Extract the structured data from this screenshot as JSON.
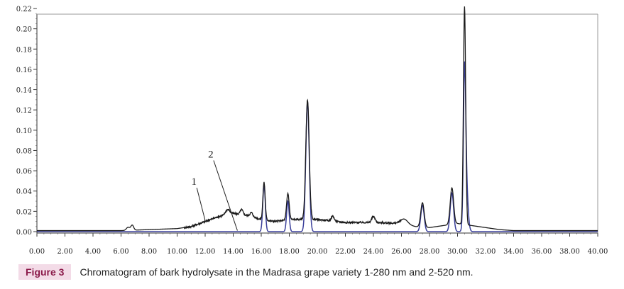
{
  "chart_data": {
    "type": "line",
    "xlim": [
      0,
      40
    ],
    "ylim": [
      0,
      0.22
    ],
    "grid": false,
    "x_ticks": [
      "0.00",
      "2.00",
      "4.00",
      "6.00",
      "8.00",
      "10.00",
      "12.00",
      "14.00",
      "16.00",
      "18.00",
      "20.00",
      "22.00",
      "24.00",
      "26.00",
      "28.00",
      "30.00",
      "32.00",
      "34.00",
      "36.00",
      "38.00",
      "40.00"
    ],
    "y_ticks": [
      "0.00",
      "0.02",
      "0.04",
      "0.06",
      "0.08",
      "0.10",
      "0.12",
      "0.14",
      "0.16",
      "0.18",
      "0.20",
      "0.22"
    ],
    "series": [
      {
        "name": "1",
        "color": "#1a1a1a",
        "baseline": [
          [
            0,
            0.001
          ],
          [
            6,
            0.001
          ],
          [
            10,
            0.003
          ],
          [
            11,
            0.005
          ],
          [
            12,
            0.01
          ],
          [
            13,
            0.015
          ],
          [
            14,
            0.018
          ],
          [
            15,
            0.016
          ],
          [
            16,
            0.012
          ],
          [
            17,
            0.01
          ],
          [
            18,
            0.012
          ],
          [
            19,
            0.012
          ],
          [
            20,
            0.012
          ],
          [
            22,
            0.009
          ],
          [
            24,
            0.009
          ],
          [
            26,
            0.008
          ],
          [
            27,
            0.005
          ],
          [
            28,
            0.004
          ],
          [
            29,
            0.006
          ],
          [
            30,
            0.008
          ],
          [
            31,
            0.006
          ],
          [
            32,
            0.004
          ],
          [
            33,
            0.002
          ],
          [
            34,
            0.001
          ],
          [
            40,
            0.001
          ]
        ],
        "peaks": [
          [
            6.5,
            0.003,
            0.12
          ],
          [
            6.8,
            0.005,
            0.1
          ],
          [
            13.6,
            0.005,
            0.15
          ],
          [
            14.6,
            0.005,
            0.1
          ],
          [
            15.3,
            0.004,
            0.1
          ],
          [
            16.2,
            0.037,
            0.08
          ],
          [
            17.9,
            0.026,
            0.09
          ],
          [
            19.3,
            0.118,
            0.12
          ],
          [
            21.1,
            0.005,
            0.1
          ],
          [
            24.0,
            0.006,
            0.12
          ],
          [
            26.2,
            0.005,
            0.25
          ],
          [
            27.5,
            0.024,
            0.12
          ],
          [
            29.6,
            0.036,
            0.12
          ],
          [
            30.5,
            0.215,
            0.08
          ]
        ]
      },
      {
        "name": "2",
        "color": "#3a3f9a",
        "baseline": [
          [
            0,
            0.0
          ],
          [
            40,
            0.0
          ]
        ],
        "peaks": [
          [
            16.2,
            0.046,
            0.09
          ],
          [
            17.9,
            0.03,
            0.09
          ],
          [
            19.3,
            0.128,
            0.12
          ],
          [
            27.5,
            0.026,
            0.12
          ],
          [
            29.6,
            0.038,
            0.12
          ],
          [
            30.5,
            0.13,
            0.08
          ],
          [
            30.6,
            0.05,
            0.13
          ]
        ]
      }
    ],
    "annotations": [
      {
        "text": "1",
        "x": 11.2,
        "y": 0.046,
        "arrow_to": [
          12.0,
          0.011
        ]
      },
      {
        "text": "2",
        "x": 12.4,
        "y": 0.073,
        "arrow_to": [
          14.3,
          0.001
        ]
      }
    ]
  },
  "caption": {
    "label": "Figure 3",
    "text": "Chromatogram of bark hydrolysate in the Madrasa grape variety 1-280 nm and 2-520 nm."
  }
}
